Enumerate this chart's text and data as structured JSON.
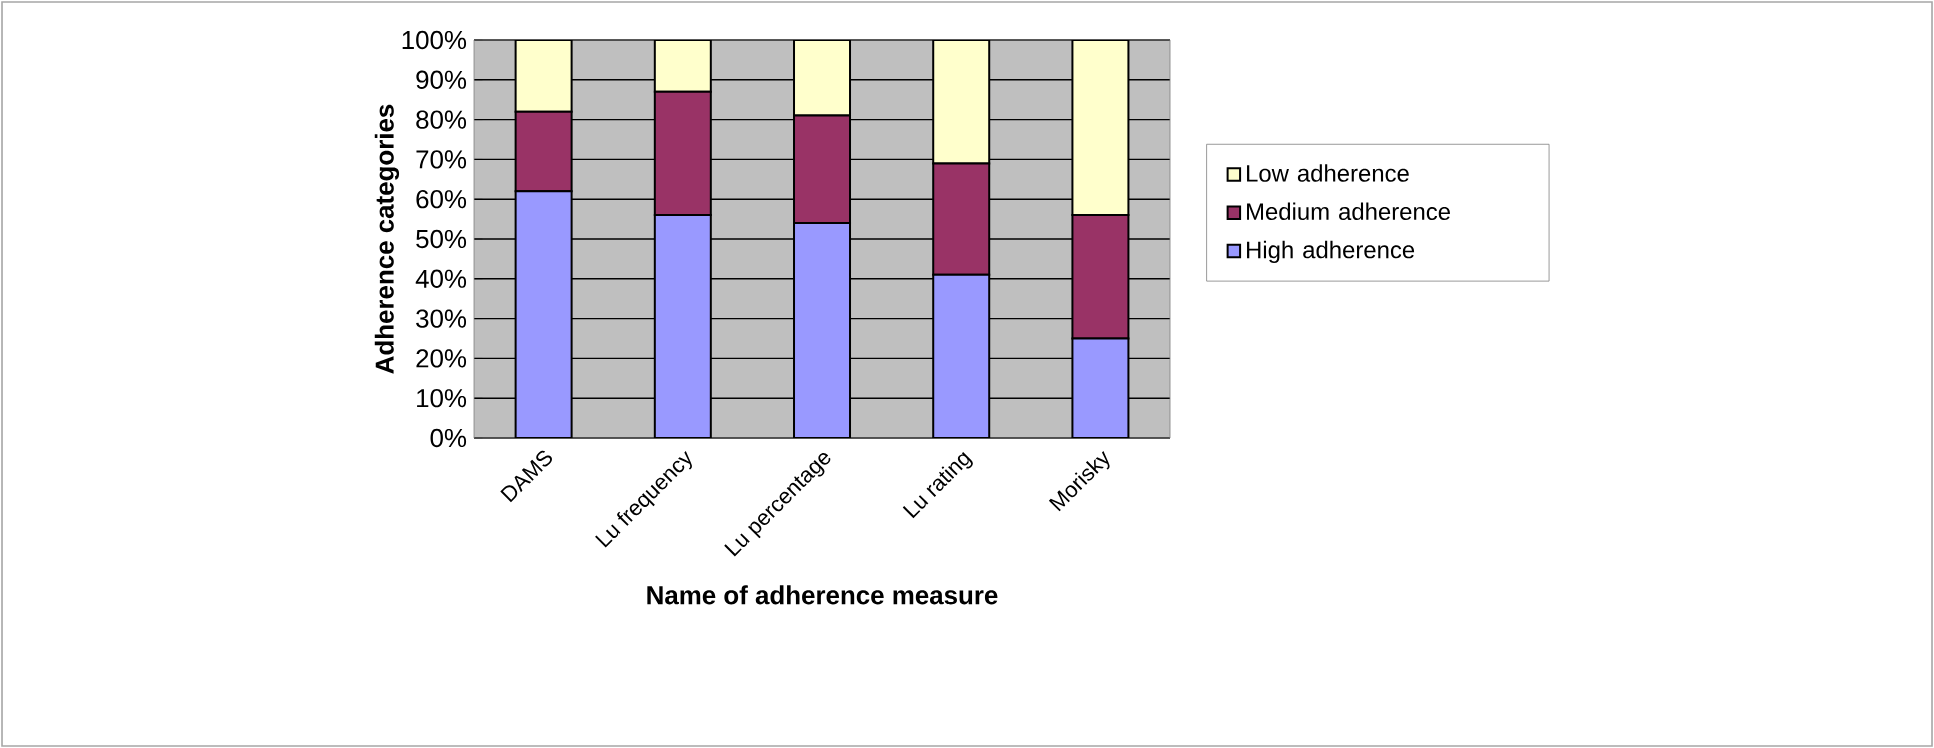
{
  "chart_data": {
    "type": "bar",
    "stacked": true,
    "xlabel": "Name of adherence measure",
    "ylabel": "Adherence categories",
    "categories": [
      "DAMS",
      "Lu frequency",
      "Lu percentage",
      "Lu rating",
      "Morisky"
    ],
    "series": [
      {
        "name": "High adherence",
        "color": "#9999ff",
        "values": [
          62,
          56,
          54,
          41,
          25
        ]
      },
      {
        "name": "Medium adherence",
        "color": "#993366",
        "values": [
          20,
          31,
          27,
          28,
          31
        ]
      },
      {
        "name": "Low adherence",
        "color": "#ffffcc",
        "values": [
          18,
          13,
          19,
          31,
          44
        ]
      }
    ],
    "ylim": [
      0,
      100
    ],
    "yticks": [
      {
        "value": 0,
        "label": "0%"
      },
      {
        "value": 10,
        "label": "10%"
      },
      {
        "value": 20,
        "label": "20%"
      },
      {
        "value": 30,
        "label": "30%"
      },
      {
        "value": 40,
        "label": "40%"
      },
      {
        "value": 50,
        "label": "50%"
      },
      {
        "value": 60,
        "label": "60%"
      },
      {
        "value": 70,
        "label": "70%"
      },
      {
        "value": 80,
        "label": "80%"
      },
      {
        "value": 90,
        "label": "90%"
      },
      {
        "value": 100,
        "label": "100%"
      }
    ],
    "grid": "y",
    "legend": "right"
  }
}
